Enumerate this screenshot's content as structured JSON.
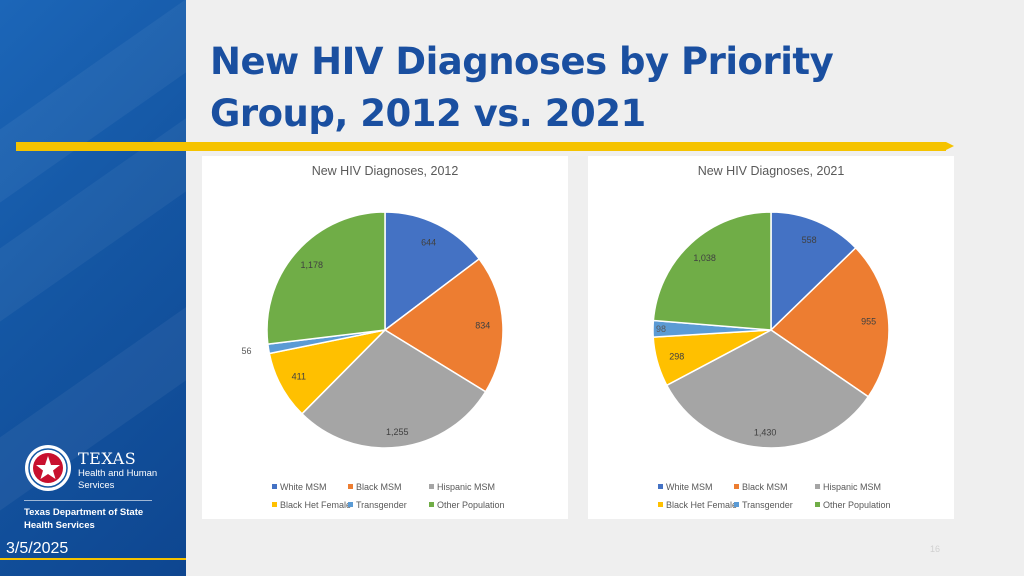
{
  "title": "New HIV Diagnoses by Priority Group, 2012 vs. 2021",
  "title_lines": [
    "New HIV Diagnoses by Priority",
    "Group, 2012 vs. 2021"
  ],
  "date": "3/5/2025",
  "page_number": "16",
  "logo": {
    "texas": "TEXAS",
    "hhs_line1": "Health and Human",
    "hhs_line2": "Services",
    "dshs_line1": "Texas Department of State",
    "dshs_line2": "Health Services"
  },
  "colors": {
    "title": "#1a4fa0",
    "accent_bar": "#f5c300",
    "side_panel": "#1456a3"
  },
  "legend": {
    "row1": [
      "White MSM",
      "Black MSM",
      "Hispanic MSM"
    ],
    "row2": [
      "Black Het Female",
      "Transgender",
      "Other Population"
    ]
  },
  "chart_data": [
    {
      "type": "pie",
      "title": "New HIV Diagnoses, 2012",
      "categories": [
        "White MSM",
        "Black MSM",
        "Hispanic MSM",
        "Black Het Female",
        "Transgender",
        "Other Population"
      ],
      "values": [
        644,
        834,
        1255,
        411,
        56,
        1178
      ],
      "value_labels": [
        "644",
        "834",
        "1,255",
        "411",
        "56",
        "1,178"
      ],
      "colors": [
        "#4472c4",
        "#ed7d31",
        "#a5a5a5",
        "#ffc000",
        "#5b9bd5",
        "#70ad47"
      ],
      "legend_position": "bottom"
    },
    {
      "type": "pie",
      "title": "New HIV Diagnoses, 2021",
      "categories": [
        "White MSM",
        "Black MSM",
        "Hispanic MSM",
        "Black Het Female",
        "Transgender",
        "Other Population"
      ],
      "values": [
        558,
        955,
        1430,
        298,
        98,
        1038
      ],
      "value_labels": [
        "558",
        "955",
        "1,430",
        "298",
        "98",
        "1,038"
      ],
      "colors": [
        "#4472c4",
        "#ed7d31",
        "#a5a5a5",
        "#ffc000",
        "#5b9bd5",
        "#70ad47"
      ],
      "legend_position": "bottom"
    }
  ]
}
